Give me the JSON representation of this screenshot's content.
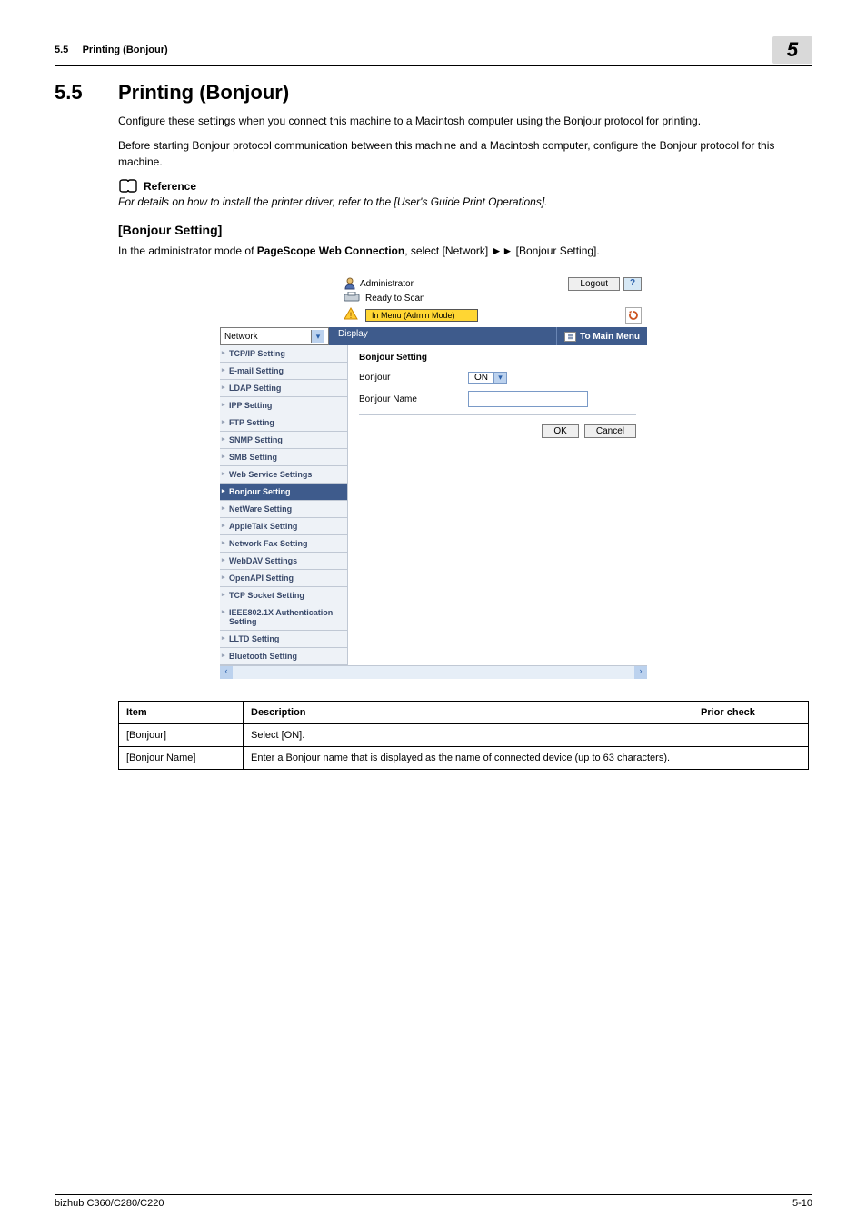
{
  "header": {
    "section_number": "5.5",
    "section_title_short": "Printing (Bonjour)",
    "chapter_badge": "5"
  },
  "main": {
    "h1_number": "5.5",
    "h1_title": "Printing (Bonjour)",
    "p1": "Configure these settings when you connect this machine to a Macintosh computer using the Bonjour protocol for printing.",
    "p2": "Before starting Bonjour protocol communication between this machine and a Macintosh computer, configure the Bonjour protocol for this machine.",
    "reference_label": "Reference",
    "reference_text": "For details on how to install the printer driver, refer to the [User's Guide Print Operations].",
    "h2": "[Bonjour Setting]",
    "instruction_pre": "In the administrator mode of ",
    "instruction_bold": "PageScope Web Connection",
    "instruction_post": ", select [Network] ►► [Bonjour Setting]."
  },
  "panel": {
    "admin_label": "Administrator",
    "ready_label": "Ready to Scan",
    "menu_mode_label": "In Menu (Admin Mode)",
    "logout_label": "Logout",
    "help_label": "?",
    "dropdown_value": "Network",
    "display_label": "Display",
    "main_menu_label": "To Main Menu",
    "sidebar_items": [
      "TCP/IP Setting",
      "E-mail Setting",
      "LDAP Setting",
      "IPP Setting",
      "FTP Setting",
      "SNMP Setting",
      "SMB Setting",
      "Web Service Settings",
      "Bonjour Setting",
      "NetWare Setting",
      "AppleTalk Setting",
      "Network Fax Setting",
      "WebDAV Settings",
      "OpenAPI Setting",
      "TCP Socket Setting",
      "IEEE802.1X Authentication Setting",
      "LLTD Setting",
      "Bluetooth Setting"
    ],
    "active_index": 8,
    "content_title": "Bonjour Setting",
    "field_bonjour_label": "Bonjour",
    "field_bonjour_value": "ON",
    "field_name_label": "Bonjour Name",
    "ok_label": "OK",
    "cancel_label": "Cancel"
  },
  "table": {
    "columns": [
      "Item",
      "Description",
      "Prior check"
    ],
    "rows": [
      [
        "[Bonjour]",
        "Select [ON].",
        ""
      ],
      [
        "[Bonjour Name]",
        "Enter a Bonjour name that is displayed as the name of connected device (up to 63 characters).",
        ""
      ]
    ]
  },
  "footer": {
    "left": "bizhub C360/C280/C220",
    "right": "5-10"
  },
  "colors": {
    "panel_blue": "#3e5b8c",
    "panel_highlight": "#ffd633",
    "side_text": "#3a4a6b"
  }
}
